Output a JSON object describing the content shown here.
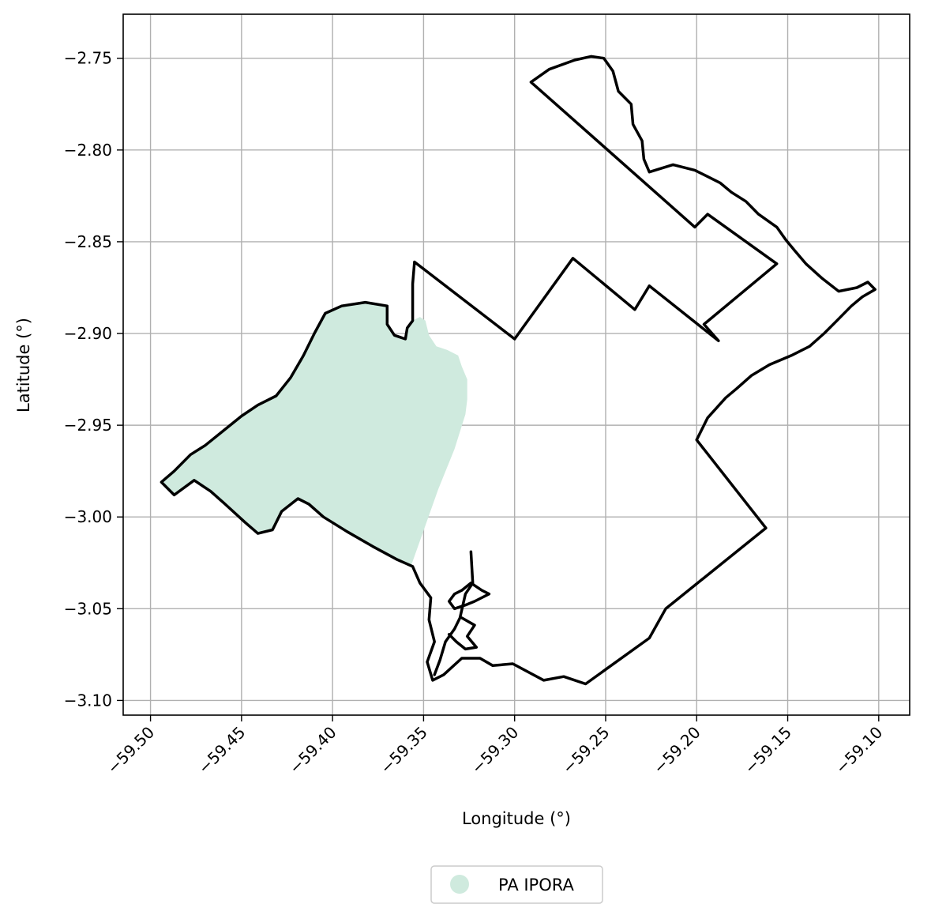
{
  "chart_data": {
    "type": "map",
    "xlabel": "Longitude (°)",
    "ylabel": "Latitude (°)",
    "xlim": [
      -59.515,
      -59.083
    ],
    "ylim": [
      -3.108,
      -2.726
    ],
    "xticks": [
      {
        "value": -59.5,
        "label": "−59.50"
      },
      {
        "value": -59.45,
        "label": "−59.45"
      },
      {
        "value": -59.4,
        "label": "−59.40"
      },
      {
        "value": -59.35,
        "label": "−59.35"
      },
      {
        "value": -59.3,
        "label": "−59.30"
      },
      {
        "value": -59.25,
        "label": "−59.25"
      },
      {
        "value": -59.2,
        "label": "−59.20"
      },
      {
        "value": -59.15,
        "label": "−59.15"
      },
      {
        "value": -59.1,
        "label": "−59.10"
      }
    ],
    "yticks": [
      {
        "value": -2.75,
        "label": "−2.75"
      },
      {
        "value": -2.8,
        "label": "−2.80"
      },
      {
        "value": -2.85,
        "label": "−2.85"
      },
      {
        "value": -2.9,
        "label": "−2.90"
      },
      {
        "value": -2.95,
        "label": "−2.95"
      },
      {
        "value": -3.0,
        "label": "−3.00"
      },
      {
        "value": -3.05,
        "label": "−3.05"
      },
      {
        "value": -3.1,
        "label": "−3.10"
      }
    ],
    "grid": true,
    "legend_position": "bottom-center",
    "layers": [
      {
        "name": "PA IPORA",
        "kind": "filled-polygon",
        "color": "#cfeade",
        "coords": [
          [
            -59.352,
            -2.891
          ],
          [
            -59.356,
            -2.893
          ],
          [
            -59.359,
            -2.897
          ],
          [
            -59.36,
            -2.903
          ],
          [
            -59.366,
            -2.901
          ],
          [
            -59.37,
            -2.895
          ],
          [
            -59.37,
            -2.885
          ],
          [
            -59.382,
            -2.883
          ],
          [
            -59.395,
            -2.885
          ],
          [
            -59.404,
            -2.889
          ],
          [
            -59.41,
            -2.9
          ],
          [
            -59.416,
            -2.912
          ],
          [
            -59.423,
            -2.924
          ],
          [
            -59.431,
            -2.934
          ],
          [
            -59.441,
            -2.939
          ],
          [
            -59.45,
            -2.945
          ],
          [
            -59.46,
            -2.953
          ],
          [
            -59.47,
            -2.961
          ],
          [
            -59.478,
            -2.966
          ],
          [
            -59.487,
            -2.975
          ],
          [
            -59.494,
            -2.981
          ],
          [
            -59.487,
            -2.988
          ],
          [
            -59.476,
            -2.98
          ],
          [
            -59.467,
            -2.986
          ],
          [
            -59.459,
            -2.993
          ],
          [
            -59.448,
            -3.003
          ],
          [
            -59.441,
            -3.009
          ],
          [
            -59.433,
            -3.007
          ],
          [
            -59.428,
            -2.997
          ],
          [
            -59.419,
            -2.99
          ],
          [
            -59.413,
            -2.993
          ],
          [
            -59.405,
            -3.0
          ],
          [
            -59.392,
            -3.008
          ],
          [
            -59.378,
            -3.016
          ],
          [
            -59.365,
            -3.023
          ],
          [
            -59.357,
            -3.027
          ],
          [
            -59.342,
            -2.985
          ],
          [
            -59.333,
            -2.963
          ],
          [
            -59.327,
            -2.944
          ],
          [
            -59.326,
            -2.936
          ],
          [
            -59.326,
            -2.925
          ],
          [
            -59.329,
            -2.918
          ],
          [
            -59.331,
            -2.912
          ],
          [
            -59.337,
            -2.909
          ],
          [
            -59.343,
            -2.907
          ],
          [
            -59.347,
            -2.901
          ],
          [
            -59.349,
            -2.893
          ]
        ]
      },
      {
        "name": "",
        "kind": "outline",
        "color": "#000000",
        "coords": [
          [
            -59.355,
            -2.861
          ],
          [
            -59.3,
            -2.903
          ],
          [
            -59.268,
            -2.859
          ],
          [
            -59.234,
            -2.887
          ],
          [
            -59.226,
            -2.874
          ],
          [
            -59.188,
            -2.904
          ],
          [
            -59.196,
            -2.895
          ],
          [
            -59.156,
            -2.862
          ],
          [
            -59.194,
            -2.835
          ],
          [
            -59.201,
            -2.842
          ],
          [
            -59.291,
            -2.763
          ],
          [
            -59.281,
            -2.756
          ],
          [
            -59.267,
            -2.751
          ],
          [
            -59.258,
            -2.749
          ],
          [
            -59.251,
            -2.75
          ],
          [
            -59.246,
            -2.757
          ],
          [
            -59.243,
            -2.768
          ],
          [
            -59.236,
            -2.775
          ],
          [
            -59.235,
            -2.786
          ],
          [
            -59.23,
            -2.795
          ],
          [
            -59.229,
            -2.805
          ],
          [
            -59.226,
            -2.812
          ],
          [
            -59.213,
            -2.808
          ],
          [
            -59.201,
            -2.811
          ],
          [
            -59.195,
            -2.814
          ],
          [
            -59.187,
            -2.818
          ],
          [
            -59.181,
            -2.823
          ],
          [
            -59.173,
            -2.828
          ],
          [
            -59.166,
            -2.835
          ],
          [
            -59.156,
            -2.842
          ],
          [
            -59.151,
            -2.849
          ],
          [
            -59.146,
            -2.855
          ],
          [
            -59.14,
            -2.862
          ],
          [
            -59.131,
            -2.87
          ],
          [
            -59.122,
            -2.877
          ],
          [
            -59.112,
            -2.875
          ],
          [
            -59.106,
            -2.872
          ],
          [
            -59.102,
            -2.876
          ],
          [
            -59.109,
            -2.88
          ],
          [
            -59.115,
            -2.885
          ],
          [
            -59.123,
            -2.893
          ],
          [
            -59.13,
            -2.9
          ],
          [
            -59.138,
            -2.907
          ],
          [
            -59.148,
            -2.912
          ],
          [
            -59.16,
            -2.917
          ],
          [
            -59.17,
            -2.923
          ],
          [
            -59.178,
            -2.93
          ],
          [
            -59.184,
            -2.935
          ],
          [
            -59.194,
            -2.946
          ],
          [
            -59.2,
            -2.958
          ],
          [
            -59.162,
            -3.006
          ],
          [
            -59.217,
            -3.05
          ],
          [
            -59.226,
            -3.066
          ],
          [
            -59.261,
            -3.091
          ],
          [
            -59.273,
            -3.087
          ],
          [
            -59.284,
            -3.089
          ],
          [
            -59.301,
            -3.08
          ],
          [
            -59.312,
            -3.081
          ],
          [
            -59.319,
            -3.077
          ],
          [
            -59.329,
            -3.077
          ],
          [
            -59.339,
            -3.086
          ],
          [
            -59.345,
            -3.089
          ],
          [
            -59.348,
            -3.079
          ],
          [
            -59.344,
            -3.068
          ],
          [
            -59.347,
            -3.056
          ],
          [
            -59.346,
            -3.044
          ],
          [
            -59.352,
            -3.036
          ],
          [
            -59.356,
            -3.027
          ],
          [
            -59.365,
            -3.023
          ],
          [
            -59.378,
            -3.016
          ],
          [
            -59.392,
            -3.008
          ],
          [
            -59.405,
            -3.0
          ],
          [
            -59.413,
            -2.993
          ],
          [
            -59.419,
            -2.99
          ],
          [
            -59.428,
            -2.997
          ],
          [
            -59.433,
            -3.007
          ],
          [
            -59.441,
            -3.009
          ],
          [
            -59.448,
            -3.003
          ],
          [
            -59.459,
            -2.993
          ],
          [
            -59.467,
            -2.986
          ],
          [
            -59.476,
            -2.98
          ],
          [
            -59.487,
            -2.988
          ],
          [
            -59.494,
            -2.981
          ],
          [
            -59.487,
            -2.975
          ],
          [
            -59.478,
            -2.966
          ],
          [
            -59.47,
            -2.961
          ],
          [
            -59.46,
            -2.953
          ],
          [
            -59.45,
            -2.945
          ],
          [
            -59.441,
            -2.939
          ],
          [
            -59.431,
            -2.934
          ],
          [
            -59.423,
            -2.924
          ],
          [
            -59.416,
            -2.912
          ],
          [
            -59.41,
            -2.9
          ],
          [
            -59.404,
            -2.889
          ],
          [
            -59.395,
            -2.885
          ],
          [
            -59.382,
            -2.883
          ],
          [
            -59.37,
            -2.885
          ],
          [
            -59.37,
            -2.895
          ],
          [
            -59.366,
            -2.901
          ],
          [
            -59.36,
            -2.903
          ],
          [
            -59.359,
            -2.897
          ],
          [
            -59.356,
            -2.893
          ],
          [
            -59.356,
            -2.873
          ],
          [
            -59.355,
            -2.861
          ]
        ]
      },
      {
        "name": "",
        "kind": "line",
        "color": "#000000",
        "coords": [
          [
            -59.324,
            -3.019
          ],
          [
            -59.323,
            -3.036
          ],
          [
            -59.327,
            -3.042
          ],
          [
            -59.33,
            -3.055
          ],
          [
            -59.333,
            -3.061
          ],
          [
            -59.338,
            -3.068
          ],
          [
            -59.341,
            -3.078
          ],
          [
            -59.344,
            -3.086
          ]
        ]
      },
      {
        "name": "",
        "kind": "line",
        "color": "#000000",
        "coords": [
          [
            -59.324,
            -3.036
          ],
          [
            -59.318,
            -3.04
          ],
          [
            -59.314,
            -3.042
          ],
          [
            -59.322,
            -3.046
          ],
          [
            -59.327,
            -3.048
          ],
          [
            -59.333,
            -3.05
          ],
          [
            -59.336,
            -3.046
          ],
          [
            -59.333,
            -3.042
          ],
          [
            -59.329,
            -3.04
          ],
          [
            -59.324,
            -3.036
          ]
        ]
      },
      {
        "name": "",
        "kind": "line",
        "color": "#000000",
        "coords": [
          [
            -59.329,
            -3.055
          ],
          [
            -59.322,
            -3.059
          ],
          [
            -59.326,
            -3.065
          ],
          [
            -59.321,
            -3.071
          ],
          [
            -59.327,
            -3.072
          ],
          [
            -59.332,
            -3.068
          ],
          [
            -59.336,
            -3.064
          ]
        ]
      }
    ]
  }
}
